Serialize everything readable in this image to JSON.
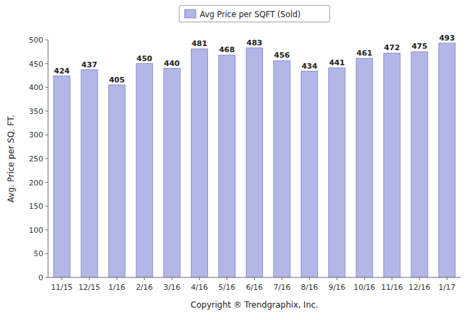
{
  "chart_data": {
    "type": "bar",
    "xlabel": "Copyright ® Trendgraphix, Inc.",
    "ylabel": "Avg. Price per SQ. FT.",
    "categories": [
      "11/15",
      "12/15",
      "1/16",
      "2/16",
      "3/16",
      "4/16",
      "5/16",
      "6/16",
      "7/16",
      "8/16",
      "9/16",
      "10/16",
      "11/16",
      "12/16",
      "1/17"
    ],
    "series": [
      {
        "name": "Avg Price per SQFT (Sold)",
        "color": "#b3b7e8",
        "values": [
          424,
          437,
          405,
          450,
          440,
          481,
          468,
          483,
          456,
          434,
          441,
          461,
          472,
          475,
          493
        ]
      }
    ],
    "ylim": [
      0,
      500
    ],
    "yticks": [
      0,
      50,
      100,
      150,
      200,
      250,
      300,
      350,
      400,
      450,
      500
    ],
    "grid": false,
    "legend": "top",
    "data_labels": true
  }
}
